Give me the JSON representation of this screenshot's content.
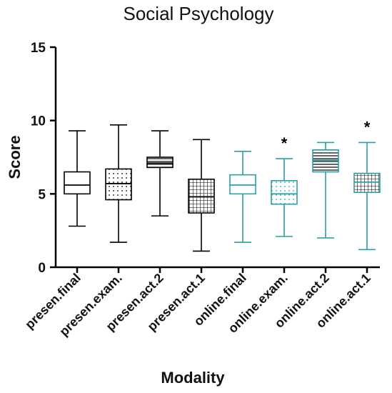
{
  "chart_data": {
    "type": "box",
    "title": "Social Psychology",
    "xlabel": "Modality",
    "ylabel": "Score",
    "ylim": [
      0,
      15
    ],
    "yticks": [
      "0",
      "5",
      "10",
      "15"
    ],
    "grid": false,
    "colors": {
      "presen": "#000000",
      "online": "#2a9fa6"
    },
    "categories": [
      "presen.final",
      "presen.exam.",
      "presen.act.2",
      "presen.act.1",
      "online.final",
      "online.exam.",
      "online.act.2",
      "online.act.1"
    ],
    "boxes": [
      {
        "group": "presen",
        "pattern": "plain",
        "min": 2.8,
        "q1": 5.0,
        "median": 5.6,
        "q3": 6.5,
        "max": 9.3,
        "significance": ""
      },
      {
        "group": "presen",
        "pattern": "dots",
        "min": 1.7,
        "q1": 4.6,
        "median": 5.7,
        "q3": 6.7,
        "max": 9.7,
        "significance": ""
      },
      {
        "group": "presen",
        "pattern": "hlines",
        "min": 3.5,
        "q1": 6.8,
        "median": 7.1,
        "q3": 7.5,
        "max": 9.3,
        "significance": ""
      },
      {
        "group": "presen",
        "pattern": "grid",
        "min": 1.1,
        "q1": 3.7,
        "median": 4.8,
        "q3": 6.0,
        "max": 8.7,
        "significance": ""
      },
      {
        "group": "online",
        "pattern": "plain",
        "min": 1.7,
        "q1": 5.0,
        "median": 5.6,
        "q3": 6.3,
        "max": 7.9,
        "significance": ""
      },
      {
        "group": "online",
        "pattern": "dots",
        "min": 2.1,
        "q1": 4.3,
        "median": 5.0,
        "q3": 5.9,
        "max": 7.4,
        "significance": "*"
      },
      {
        "group": "online",
        "pattern": "hlines",
        "min": 2.0,
        "q1": 6.5,
        "median": 7.3,
        "q3": 8.0,
        "max": 8.5,
        "significance": ""
      },
      {
        "group": "online",
        "pattern": "grid",
        "min": 1.2,
        "q1": 5.1,
        "median": 5.8,
        "q3": 6.4,
        "max": 8.5,
        "significance": "*"
      }
    ]
  }
}
